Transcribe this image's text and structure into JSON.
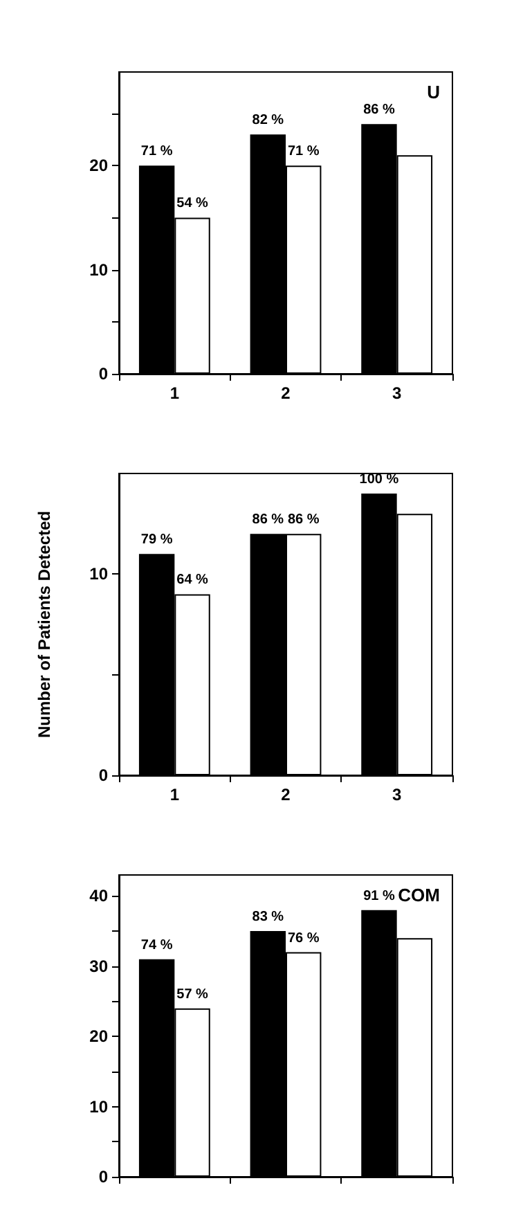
{
  "chart_data": [
    {
      "type": "bar",
      "title": "U",
      "categories": [
        "1",
        "2",
        "3"
      ],
      "series": [
        {
          "color": "#000000",
          "values": [
            20,
            23,
            24
          ]
        },
        {
          "color": "#ffffff",
          "values": [
            15,
            20,
            21
          ]
        }
      ],
      "annotations": [
        {
          "text": "71 %",
          "x": "1",
          "y": 20
        },
        {
          "text": "82 %",
          "x": "2",
          "y": 23
        },
        {
          "text": "86 %",
          "x": "3",
          "y": 24
        },
        {
          "text": "54 %",
          "x": "1",
          "y": 15
        },
        {
          "text": "71 %",
          "x": "2",
          "y": 20
        }
      ],
      "ylim": [
        0,
        29
      ],
      "yticks": [
        0,
        {
          "value": 5,
          "label": null
        },
        10,
        {
          "value": 15,
          "label": null
        },
        20,
        {
          "value": 25,
          "label": null
        }
      ],
      "grid": false
    },
    {
      "type": "bar",
      "ylabel": "Number of Patients Detected",
      "categories": [
        "1",
        "2",
        "3"
      ],
      "series": [
        {
          "color": "#000000",
          "values": [
            11,
            12,
            14
          ]
        },
        {
          "color": "#ffffff",
          "values": [
            9,
            12,
            13
          ]
        }
      ],
      "annotations": [
        {
          "text": "79 %",
          "x": "1",
          "y": 11
        },
        {
          "text": "86 %",
          "x": "2",
          "y": 12
        },
        {
          "text": "100 %",
          "x": "3",
          "y": 14
        },
        {
          "text": "64 %",
          "x": "1",
          "y": 9
        },
        {
          "text": "86 %",
          "x": "2",
          "y": 12
        }
      ],
      "ylim": [
        0,
        15
      ],
      "yticks": [
        0,
        {
          "value": 5,
          "label": null
        },
        10
      ],
      "grid": false
    },
    {
      "type": "bar",
      "title": "COM",
      "categories": [
        "1",
        "2",
        "3"
      ],
      "tick_labels": "y",
      "series": [
        {
          "color": "#000000",
          "values": [
            31,
            35,
            38
          ]
        },
        {
          "color": "#ffffff",
          "values": [
            24,
            32,
            34
          ]
        }
      ],
      "annotations": [
        {
          "text": "74 %",
          "x": "1",
          "y": 31
        },
        {
          "text": "83 %",
          "x": "2",
          "y": 35
        },
        {
          "text": "91 %",
          "x": "3",
          "y": 38
        },
        {
          "text": "57 %",
          "x": "1",
          "y": 24
        },
        {
          "text": "76 %",
          "x": "2",
          "y": 32
        }
      ],
      "ylim": [
        0,
        43
      ],
      "yticks": [
        0,
        {
          "value": 5,
          "label": null
        },
        10,
        {
          "value": 15,
          "label": null
        },
        20,
        {
          "value": 25,
          "label": null
        },
        30,
        {
          "value": 35,
          "label": null
        },
        40
      ],
      "grid": false
    }
  ]
}
